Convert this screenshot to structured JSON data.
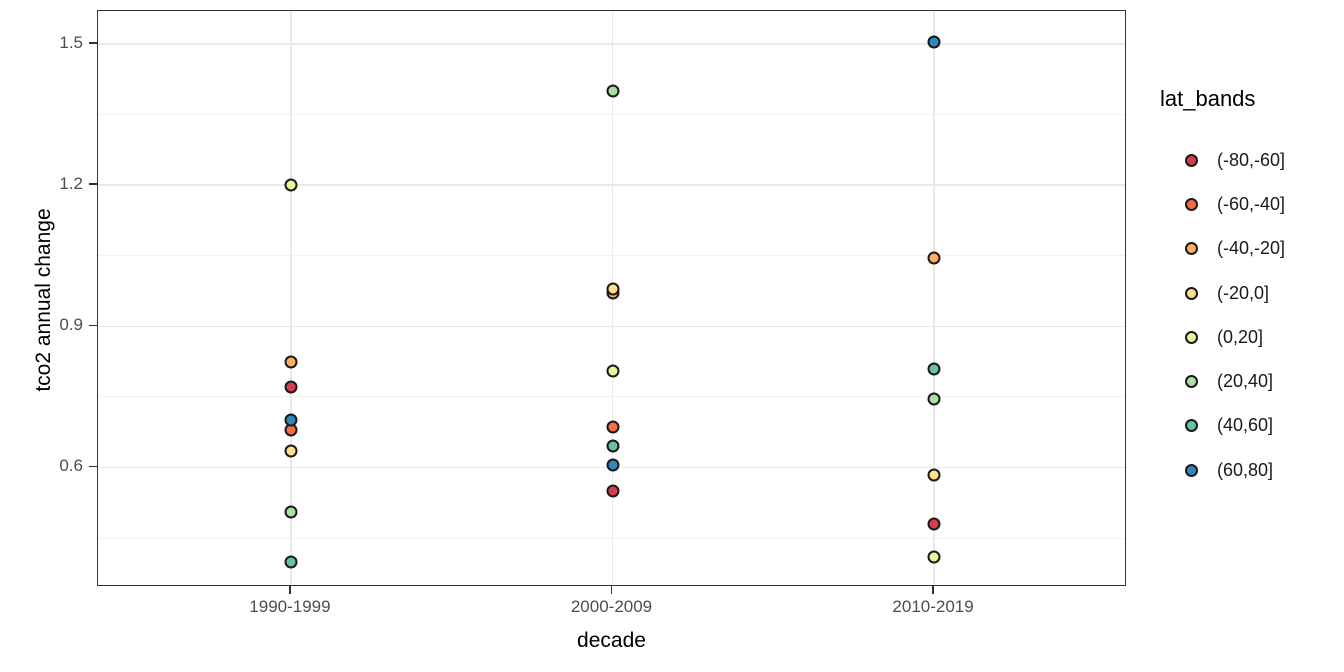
{
  "chart_data": {
    "type": "scatter",
    "xlabel": "decade",
    "ylabel": "tco2 annual change",
    "legend_title": "lat_bands",
    "legend_position": "right",
    "categories": [
      "1990-1999",
      "2000-2009",
      "2010-2019"
    ],
    "y_ticks": [
      "0.6",
      "0.9",
      "1.2",
      "1.5"
    ],
    "y_minor_ticks": [
      0.45,
      0.75,
      1.05,
      1.35
    ],
    "ylim": [
      0.346,
      1.57
    ],
    "grid": "major-and-minor, light gray on white panel, dark panel border",
    "point_outline": "#1a1a1a",
    "series": [
      {
        "name": "(-80,-60]",
        "color": "#d53e4f",
        "values": [
          0.77,
          0.55,
          0.48
        ]
      },
      {
        "name": "(-60,-40]",
        "color": "#f46d43",
        "values": [
          0.68,
          0.685,
          null
        ]
      },
      {
        "name": "(-40,-20]",
        "color": "#fdae61",
        "values": [
          0.825,
          0.97,
          1.045
        ]
      },
      {
        "name": "(-20,0]",
        "color": "#fee08b",
        "values": [
          0.635,
          0.98,
          0.585
        ]
      },
      {
        "name": "(0,20]",
        "color": "#e6f598",
        "values": [
          1.2,
          0.805,
          0.41
        ]
      },
      {
        "name": "(20,40]",
        "color": "#abdda4",
        "values": [
          0.505,
          1.4,
          0.745
        ]
      },
      {
        "name": "(40,60]",
        "color": "#66c2a5",
        "values": [
          0.4,
          0.645,
          0.81
        ]
      },
      {
        "name": "(60,80]",
        "color": "#3288bd",
        "values": [
          0.7,
          0.605,
          1.505
        ]
      }
    ]
  }
}
